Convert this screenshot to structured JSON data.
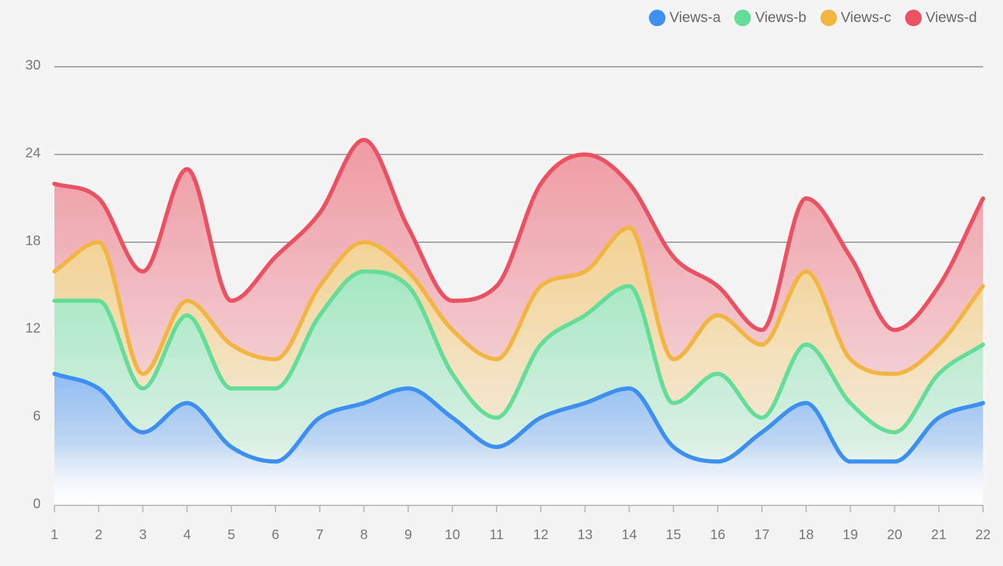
{
  "chart_data": {
    "type": "area",
    "stacked": true,
    "smooth": true,
    "categories": [
      "1",
      "2",
      "3",
      "4",
      "5",
      "6",
      "7",
      "8",
      "9",
      "10",
      "11",
      "12",
      "13",
      "14",
      "15",
      "16",
      "17",
      "18",
      "19",
      "20",
      "21",
      "22"
    ],
    "ylim": [
      0,
      30
    ],
    "yticks": [
      "0",
      "6",
      "12",
      "18",
      "24",
      "30"
    ],
    "legend_position": "top-right",
    "grid": true,
    "series": [
      {
        "name": "Views-a",
        "color": "#3d8ff0",
        "values": [
          9,
          8,
          5,
          7,
          4,
          3,
          6,
          7,
          8,
          6,
          4,
          6,
          7,
          8,
          4,
          3,
          5,
          7,
          3,
          3,
          6,
          7
        ]
      },
      {
        "name": "Views-b",
        "color": "#63dd98",
        "values": [
          5,
          6,
          3,
          6,
          4,
          5,
          7,
          9,
          7,
          3,
          2,
          5,
          6,
          7,
          3,
          6,
          1,
          4,
          4,
          2,
          3,
          4
        ]
      },
      {
        "name": "Views-c",
        "color": "#f2b541",
        "values": [
          2,
          4,
          1,
          1,
          3,
          2,
          2,
          2,
          1,
          3,
          4,
          4,
          3,
          4,
          3,
          4,
          5,
          5,
          3,
          4,
          2,
          4
        ]
      },
      {
        "name": "Views-d",
        "color": "#eb5162",
        "values": [
          6,
          3,
          7,
          9,
          3,
          7,
          5,
          7,
          3,
          2,
          5,
          7,
          8,
          3,
          7,
          2,
          1,
          5,
          7,
          3,
          4,
          6
        ]
      }
    ]
  }
}
